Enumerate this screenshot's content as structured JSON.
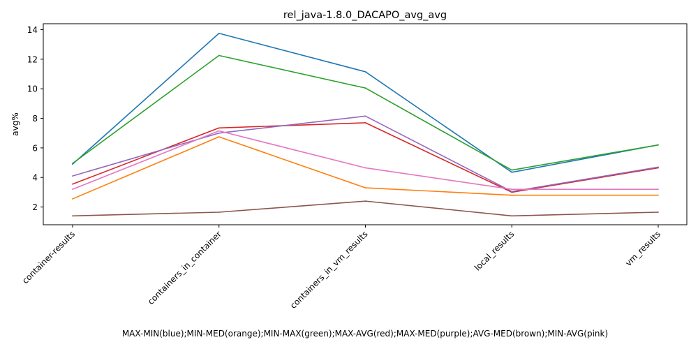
{
  "chart_data": {
    "type": "line",
    "title": "rel_java-1.8.0_DACAPO_avg_avg",
    "xlabel": "MAX-MIN(blue);MIN-MED(orange);MIN-MAX(green);MAX-AVG(red);MAX-MED(purple);AVG-MED(brown);MIN-AVG(pink)",
    "ylabel": "avg%",
    "categories": [
      "container-results",
      "containers_in_container",
      "containers_in_vm_results",
      "local_results",
      "vm_results"
    ],
    "yticks": [
      2,
      4,
      6,
      8,
      10,
      12,
      14
    ],
    "ylim": [
      0.8,
      14.4
    ],
    "grid": false,
    "legend": "none",
    "series": [
      {
        "color": "#1f77b4",
        "values": [
          4.9,
          13.75,
          11.15,
          4.35,
          6.2
        ]
      },
      {
        "color": "#ff7f0e",
        "values": [
          2.55,
          6.75,
          3.3,
          2.8,
          2.8
        ]
      },
      {
        "color": "#2ca02c",
        "values": [
          4.95,
          12.25,
          10.05,
          4.5,
          6.2
        ]
      },
      {
        "color": "#d62728",
        "values": [
          3.55,
          7.35,
          7.7,
          3.0,
          4.65
        ]
      },
      {
        "color": "#9467bd",
        "values": [
          4.1,
          7.0,
          8.15,
          3.05,
          4.7
        ]
      },
      {
        "color": "#8c564b",
        "values": [
          1.4,
          1.65,
          2.4,
          1.4,
          1.65
        ]
      },
      {
        "color": "#e377c2",
        "values": [
          3.2,
          7.15,
          4.65,
          3.2,
          3.2
        ]
      }
    ]
  }
}
